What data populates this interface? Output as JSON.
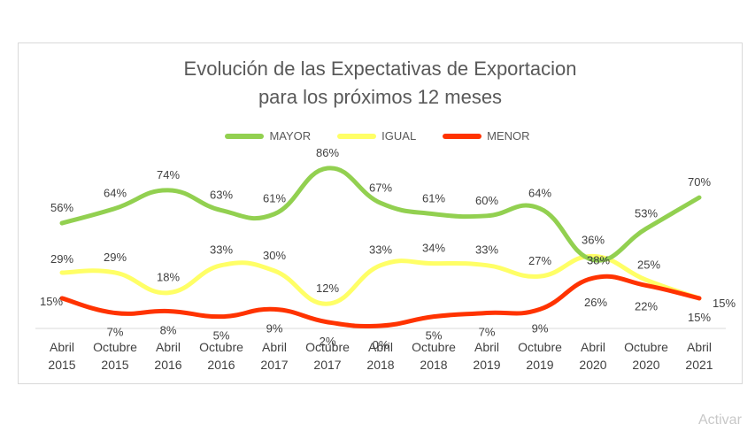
{
  "colors": {
    "mayor": "#92d050",
    "igual": "#ffff66",
    "menor": "#ff3300",
    "title": "#595959",
    "axis": "#d9d9d9",
    "text": "#404040"
  },
  "title_line1": "Evolución de las Expectativas de Exportacion",
  "title_line2": "para los próximos 12 meses",
  "watermark": "Activar",
  "chart_data": {
    "type": "line",
    "title": "Evolución de las Expectativas de Exportacion para los próximos 12 meses",
    "xlabel": "",
    "ylabel": "",
    "ylim": [
      0,
      100
    ],
    "grid": false,
    "legend_position": "top",
    "categories": [
      [
        "Abril",
        "2015"
      ],
      [
        "Octubre",
        "2015"
      ],
      [
        "Abril",
        "2016"
      ],
      [
        "Octubre",
        "2016"
      ],
      [
        "Abril",
        "2017"
      ],
      [
        "Octubre",
        "2017"
      ],
      [
        "Abril",
        "2018"
      ],
      [
        "Octubre",
        "2018"
      ],
      [
        "Abril",
        "2019"
      ],
      [
        "Octubre",
        "2019"
      ],
      [
        "Abril",
        "2020"
      ],
      [
        "Octubre",
        "2020"
      ],
      [
        "Abril",
        "2021"
      ]
    ],
    "series": [
      {
        "name": "MAYOR",
        "color_key": "mayor",
        "values": [
          56,
          64,
          74,
          63,
          61,
          86,
          67,
          61,
          60,
          64,
          36,
          53,
          70
        ],
        "labels": [
          "56%",
          "64%",
          "74%",
          "63%",
          "61%",
          "86%",
          "67%",
          "61%",
          "60%",
          "64%",
          "36%",
          "53%",
          "70%"
        ]
      },
      {
        "name": "IGUAL",
        "color_key": "igual",
        "values": [
          29,
          29,
          18,
          33,
          30,
          12,
          33,
          34,
          33,
          27,
          38,
          25,
          15
        ],
        "labels": [
          "29%",
          "29%",
          "18%",
          "33%",
          "30%",
          "12%",
          "33%",
          "34%",
          "33%",
          "27%",
          "38%",
          "25%",
          "15%"
        ]
      },
      {
        "name": "MENOR",
        "color_key": "menor",
        "values": [
          15,
          7,
          8,
          5,
          9,
          2,
          0,
          5,
          7,
          9,
          26,
          22,
          15
        ],
        "labels": [
          "15%",
          "7%",
          "8%",
          "5%",
          "9%",
          "2%",
          "0%",
          "5%",
          "7%",
          "9%",
          "26%",
          "22%",
          "15%"
        ]
      }
    ]
  }
}
